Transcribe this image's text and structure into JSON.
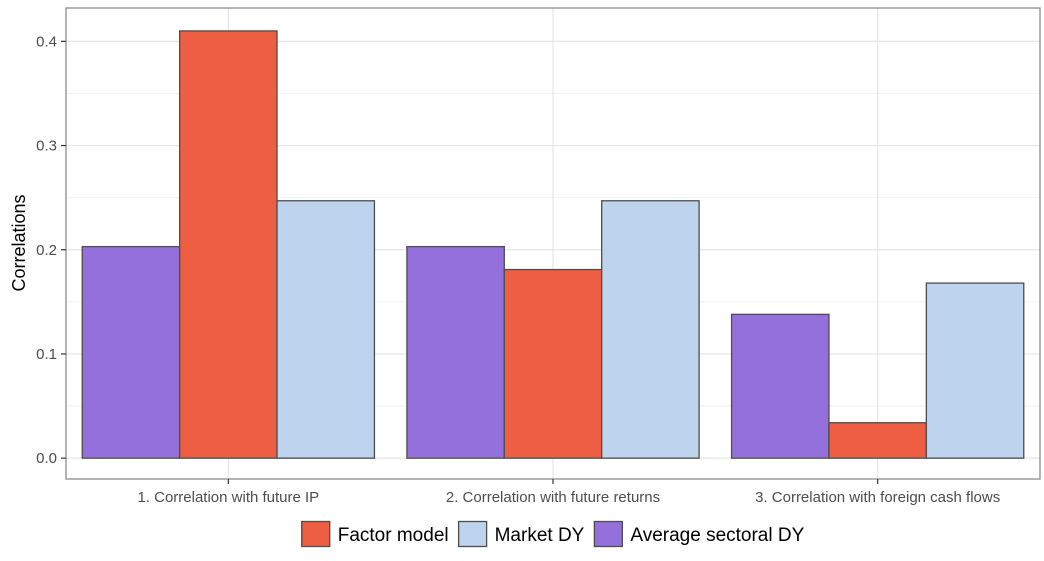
{
  "colors": {
    "factor_model": "#EE5E43",
    "market_dy": "#BDD3EE",
    "avg_sectoral_dy": "#9370DB",
    "bar_outline": "#4d4d4d",
    "grid_major": "#e6e6e6",
    "grid_minor": "#f2f2f2",
    "panel_border": "#8c8c8c"
  },
  "chart_data": {
    "type": "bar",
    "categories": [
      "1. Correlation with future IP",
      "2. Correlation with future returns",
      "3. Correlation with foreign cash flows"
    ],
    "series": [
      {
        "name": "Average sectoral DY",
        "color_key": "avg_sectoral_dy",
        "values": [
          0.203,
          0.203,
          0.138
        ]
      },
      {
        "name": "Factor model",
        "color_key": "factor_model",
        "values": [
          0.41,
          0.181,
          0.034
        ]
      },
      {
        "name": "Market DY",
        "color_key": "market_dy",
        "values": [
          0.247,
          0.247,
          0.168
        ]
      }
    ],
    "ylabel": "Correlations",
    "ylim": [
      -0.02,
      0.432
    ],
    "yticks": [
      0.0,
      0.1,
      0.2,
      0.3,
      0.4
    ],
    "ytick_labels": [
      "0.0",
      "0.1",
      "0.2",
      "0.3",
      "0.4"
    ],
    "grid": true,
    "legend": {
      "position": "bottom",
      "entries": [
        {
          "label": "Factor model",
          "color_key": "factor_model"
        },
        {
          "label": "Market DY",
          "color_key": "market_dy"
        },
        {
          "label": "Average sectoral DY",
          "color_key": "avg_sectoral_dy"
        }
      ]
    }
  }
}
